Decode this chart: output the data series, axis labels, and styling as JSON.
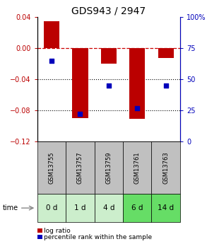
{
  "title": "GDS943 / 2947",
  "samples": [
    "GSM13755",
    "GSM13757",
    "GSM13759",
    "GSM13761",
    "GSM13763"
  ],
  "time_labels": [
    "0 d",
    "1 d",
    "4 d",
    "6 d",
    "14 d"
  ],
  "log_ratio": [
    0.035,
    -0.09,
    -0.02,
    -0.091,
    -0.013
  ],
  "percentile_rank": [
    65,
    22,
    45,
    27,
    45
  ],
  "ylim_left": [
    -0.12,
    0.04
  ],
  "ylim_right": [
    0,
    100
  ],
  "yticks_left": [
    0.04,
    0,
    -0.04,
    -0.08,
    -0.12
  ],
  "yticks_right": [
    100,
    75,
    50,
    25,
    0
  ],
  "bar_color": "#bb0000",
  "dot_color": "#0000bb",
  "bar_width": 0.55,
  "zero_line_color": "#cc0000",
  "grid_line_color": "#000000",
  "sample_bg_color": "#c0c0c0",
  "time_bg_colors": [
    "#cceecc",
    "#cceecc",
    "#cceecc",
    "#66dd66",
    "#66dd66"
  ],
  "legend_log_ratio_color": "#bb0000",
  "legend_percentile_color": "#0000bb",
  "time_arrow_color": "#888888",
  "title_fontsize": 10,
  "tick_fontsize": 7,
  "label_fontsize": 7,
  "sample_fontsize": 6,
  "time_fontsize": 7.5
}
